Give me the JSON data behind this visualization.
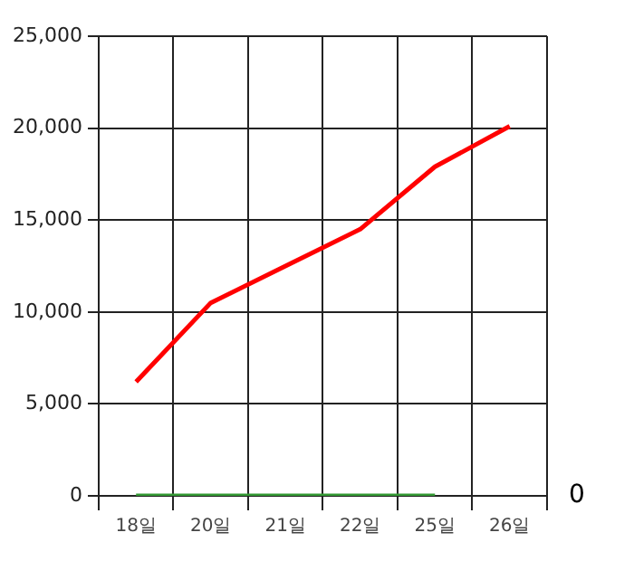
{
  "chart_data": {
    "type": "line",
    "categories": [
      "18일",
      "20일",
      "21일",
      "22일",
      "25일",
      "26일"
    ],
    "series": [
      {
        "color": "#ff0000",
        "values": [
          6200,
          10500,
          12500,
          14500,
          17900,
          20100
        ]
      },
      {
        "color": "#339933",
        "values": [
          0,
          0,
          0,
          0,
          0,
          null
        ]
      }
    ],
    "ylim": [
      0,
      25000
    ],
    "yticks": [
      0,
      {
        "value": 5000,
        "label": "5,000"
      },
      {
        "value": 10000,
        "label": "10,000"
      },
      {
        "value": 15000,
        "label": "15,000"
      },
      {
        "value": 20000,
        "label": "20,000"
      },
      {
        "value": 25000,
        "label": "25,000"
      }
    ],
    "annotations": [
      "0"
    ],
    "grid": true,
    "legend": false,
    "marker": "none",
    "line_style": "solid"
  }
}
